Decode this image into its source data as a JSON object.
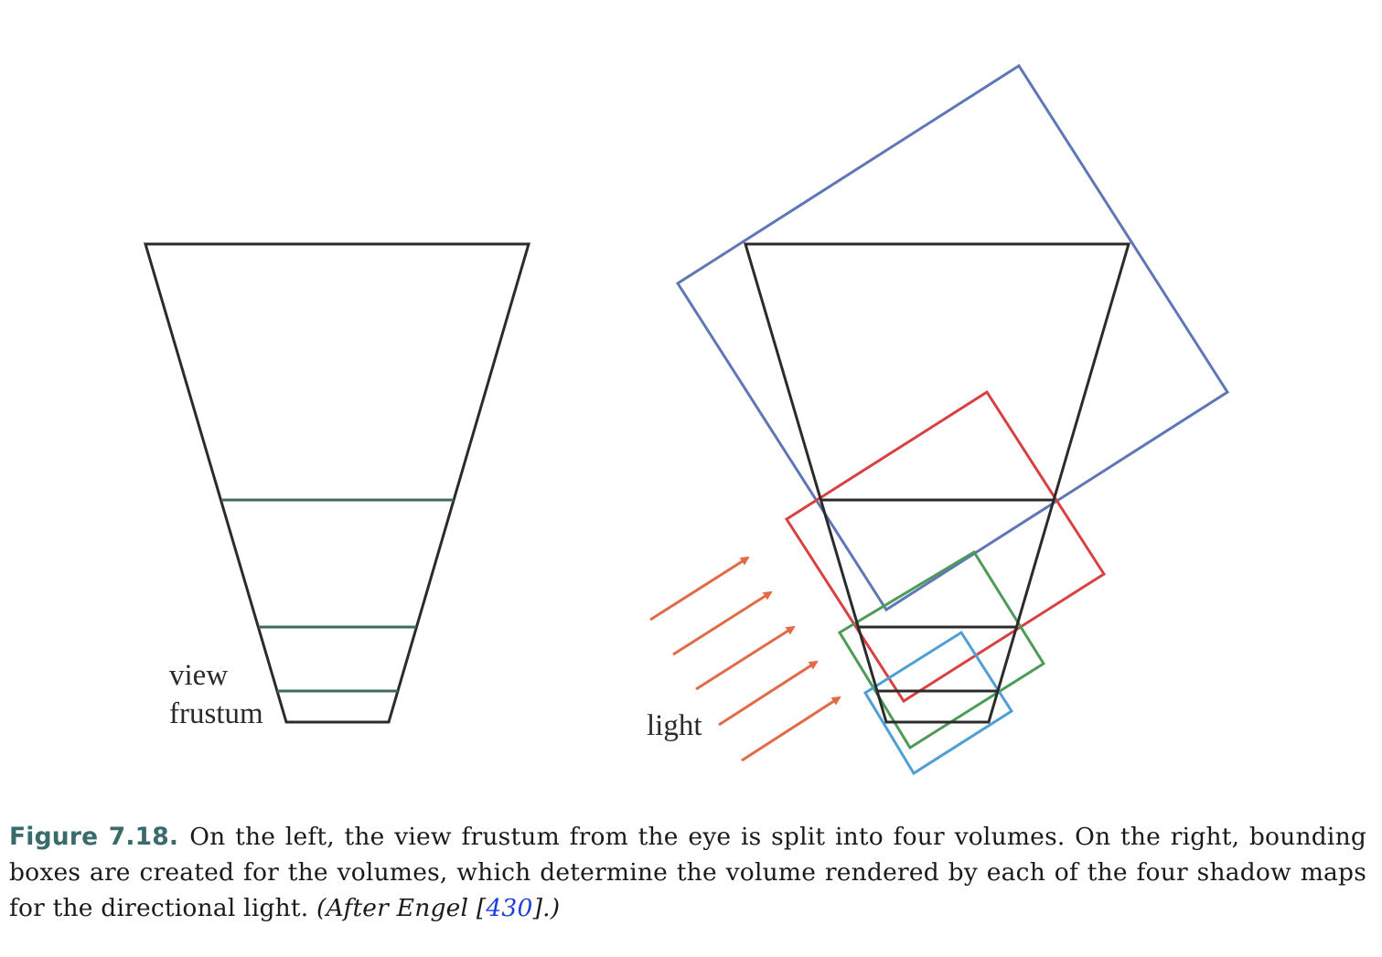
{
  "figure": {
    "left_panel": {
      "label_line1": "view",
      "label_line2": "frustum"
    },
    "right_panel": {
      "light_label": "light"
    },
    "colors": {
      "frustum": "#2b2b2b",
      "split_planes": "#3d6b5e",
      "box_far": "#5e77b5",
      "box_second": "#d94040",
      "box_third": "#4e9a58",
      "box_near": "#4d9fd6",
      "light_arrows": "#e26a45"
    }
  },
  "caption": {
    "label": "Figure 7.18.",
    "text": "On the left, the view frustum from the eye is split into four volumes. On the right, bounding boxes are created for the volumes, which determine the volume rendered by each of the four shadow maps for the directional light.",
    "attribution_before": "(After Engel [",
    "reference": "430",
    "attribution_after": "].)"
  }
}
